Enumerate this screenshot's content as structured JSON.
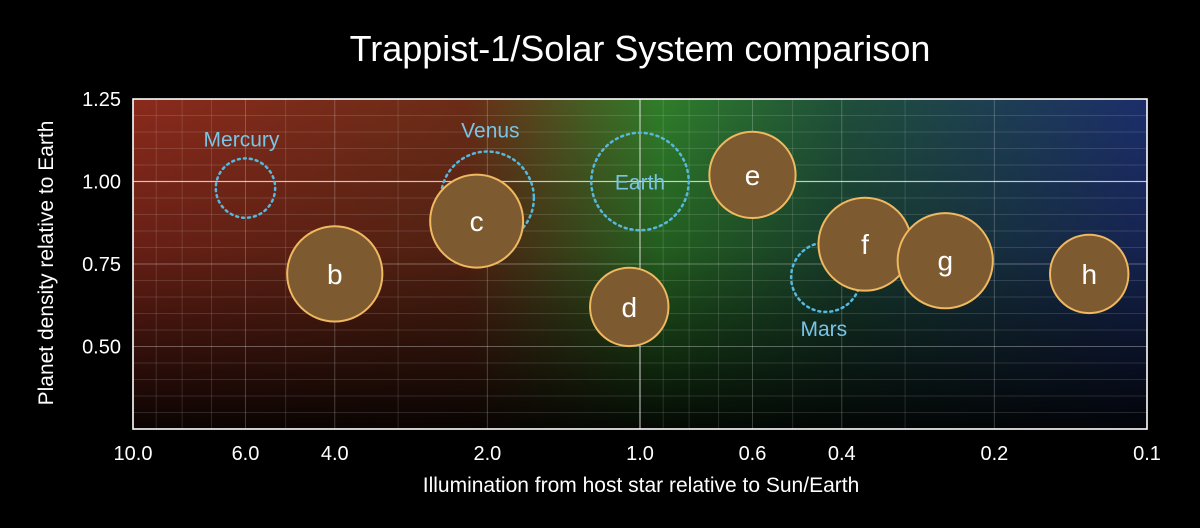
{
  "chart_data": {
    "type": "scatter",
    "title": "Trappist-1/Solar System comparison",
    "xlabel": "Illumination from host star relative to Sun/Earth",
    "ylabel": "Planet density relative to Earth",
    "x_scale": "log",
    "x_reversed": true,
    "xlim": [
      10.0,
      0.1
    ],
    "ylim": [
      0.25,
      1.25
    ],
    "xticks": [
      {
        "value": 10.0,
        "label": "10.0"
      },
      {
        "value": 6.0,
        "label": "6.0"
      },
      {
        "value": 4.0,
        "label": "4.0"
      },
      {
        "value": 2.0,
        "label": "2.0"
      },
      {
        "value": 1.0,
        "label": "1.0"
      },
      {
        "value": 0.6,
        "label": "0.6"
      },
      {
        "value": 0.4,
        "label": "0.4"
      },
      {
        "value": 0.2,
        "label": "0.2"
      },
      {
        "value": 0.1,
        "label": "0.1"
      }
    ],
    "yticks": [
      {
        "value": 0.5,
        "label": "0.50"
      },
      {
        "value": 0.75,
        "label": "0.75"
      },
      {
        "value": 1.0,
        "label": "1.00"
      },
      {
        "value": 1.25,
        "label": "1.25"
      }
    ],
    "grid": true,
    "series": [
      {
        "points": [
          {
            "label": "b",
            "x": 4.0,
            "y": 0.72,
            "relative_size": 0.85
          },
          {
            "label": "c",
            "x": 2.1,
            "y": 0.88,
            "relative_size": 0.83
          },
          {
            "label": "d",
            "x": 1.05,
            "y": 0.62,
            "relative_size": 0.7
          },
          {
            "label": "e",
            "x": 0.6,
            "y": 1.02,
            "relative_size": 0.77
          },
          {
            "label": "f",
            "x": 0.36,
            "y": 0.81,
            "relative_size": 0.83
          },
          {
            "label": "g",
            "x": 0.25,
            "y": 0.76,
            "relative_size": 0.85
          },
          {
            "label": "h",
            "x": 0.13,
            "y": 0.72,
            "relative_size": 0.7
          }
        ]
      },
      {
        "points": [
          {
            "label": "Mercury",
            "x": 6.0,
            "y": 0.98,
            "relative_size": 0.53
          },
          {
            "label": "Venus",
            "x": 2.0,
            "y": 0.95,
            "relative_size": 0.83
          },
          {
            "label": "Earth",
            "x": 1.0,
            "y": 1.0,
            "relative_size": 0.87
          },
          {
            "label": "Mars",
            "x": 0.43,
            "y": 0.71,
            "relative_size": 0.62
          }
        ]
      }
    ],
    "colors": {
      "trappist_fill": "#7d5a30",
      "trappist_stroke": "#f0b85f",
      "solar_stroke": "#56b8dd",
      "solar_text": "#79c4e6",
      "gradient_left": "#8a2a1c",
      "gradient_mid": "#2f7d2a",
      "gradient_right": "#1c2e6b"
    }
  }
}
